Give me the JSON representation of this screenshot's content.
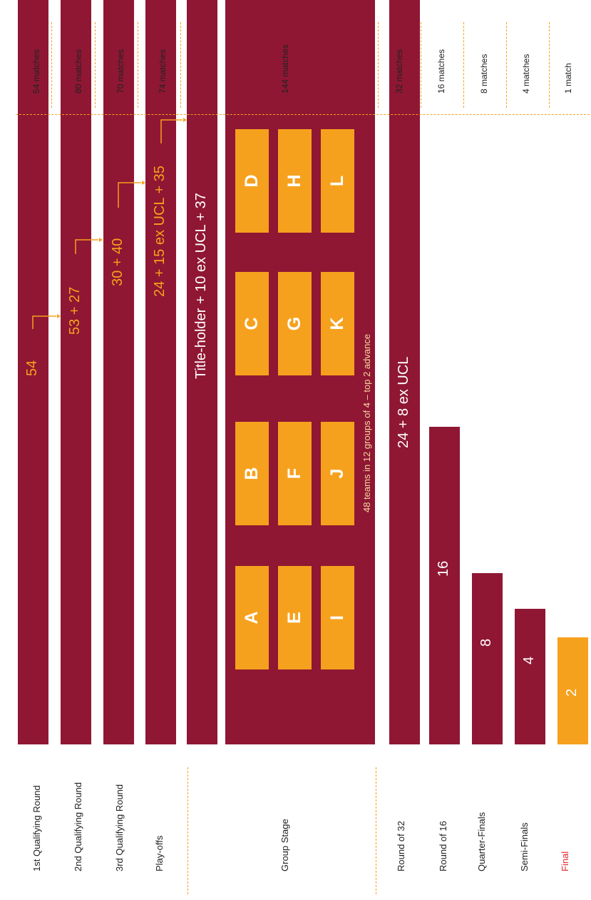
{
  "rounds": [
    {
      "label": "1st Qualifying Round",
      "matches": "54 matches",
      "bar_text": "54"
    },
    {
      "label": "2nd Qualifying Round",
      "matches": "80 matches",
      "bar_text": "53 + 27"
    },
    {
      "label": "3rd Qualifying Round",
      "matches": "70 matches",
      "bar_text": "30 + 40"
    },
    {
      "label": "Play-offs",
      "matches": "74 matches",
      "bar_text": "24 + 15 ex UCL + 35"
    },
    {
      "label": "Group Stage",
      "matches": "144 matches",
      "bar_text": "Title-holder + 10 ex UCL + 37"
    },
    {
      "label": "Round of 32",
      "matches": "32 matches",
      "bar_text": "24 + 8 ex UCL"
    },
    {
      "label": "Round of 16",
      "matches": "16 matches",
      "bar_text": "16"
    },
    {
      "label": "Quarter-Finals",
      "matches": "8 matches",
      "bar_text": "8"
    },
    {
      "label": "Semi-Finals",
      "matches": "4 matches",
      "bar_text": "4"
    },
    {
      "label": "Final",
      "matches": "1 match",
      "bar_text": "2"
    }
  ],
  "groups": {
    "rows": [
      [
        "A",
        "B",
        "C",
        "D"
      ],
      [
        "E",
        "F",
        "G",
        "H"
      ],
      [
        "I",
        "J",
        "K",
        "L"
      ]
    ],
    "note": "48 teams in 12 groups of 4 – top 2 advance"
  },
  "colors": {
    "maroon": "#8f1733",
    "orange": "#f6a11d",
    "final_label": "#e3262b"
  }
}
